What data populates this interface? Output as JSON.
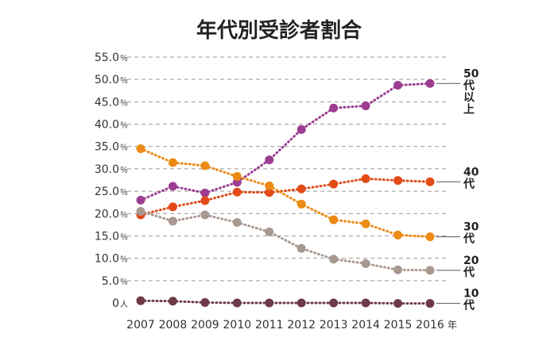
{
  "chart_data": {
    "type": "line",
    "title": "年代別受診者割合",
    "x": [
      "2007",
      "2008",
      "2009",
      "2010",
      "2011",
      "2012",
      "2013",
      "2014",
      "2015",
      "2016"
    ],
    "x_unit": "年",
    "y_unit": "％",
    "y_zero_label": "0人",
    "ylim": [
      0,
      55
    ],
    "yticks": [
      0,
      5,
      10,
      15,
      20,
      25,
      30,
      35,
      40,
      45,
      50,
      55
    ],
    "ytick_labels": [
      "0",
      "5.0",
      "10.0",
      "15.0",
      "20.0",
      "25.0",
      "30.0",
      "35.0",
      "40.0",
      "45.0",
      "50.0",
      "55.0"
    ],
    "grid": true,
    "series": [
      {
        "name": "50代以上",
        "label_lines": [
          "50",
          "代",
          "以",
          "上"
        ],
        "color": "#9b3d91",
        "values": [
          23.0,
          26.1,
          24.6,
          27.0,
          32.0,
          38.8,
          43.6,
          44.1,
          48.7,
          49.1
        ]
      },
      {
        "name": "40代",
        "label_lines": [
          "40",
          "代"
        ],
        "color": "#e24b17",
        "values": [
          19.7,
          21.5,
          22.9,
          24.8,
          24.7,
          25.5,
          26.6,
          27.8,
          27.4,
          27.1
        ]
      },
      {
        "name": "30代",
        "label_lines": [
          "30",
          "代"
        ],
        "color": "#ec8a14",
        "values": [
          34.5,
          31.4,
          30.7,
          28.3,
          26.2,
          22.1,
          18.6,
          17.7,
          15.2,
          14.8
        ]
      },
      {
        "name": "20代",
        "label_lines": [
          "20",
          "代"
        ],
        "color": "#a89890",
        "values": [
          20.5,
          18.3,
          19.7,
          18.0,
          15.9,
          12.2,
          9.8,
          8.8,
          7.4,
          7.3
        ]
      },
      {
        "name": "10代",
        "label_lines": [
          "10",
          "代"
        ],
        "color": "#6e3a47",
        "values": [
          0.5,
          0.4,
          0.1,
          0.0,
          0.0,
          0.0,
          0.0,
          0.0,
          -0.1,
          -0.1
        ]
      }
    ]
  }
}
